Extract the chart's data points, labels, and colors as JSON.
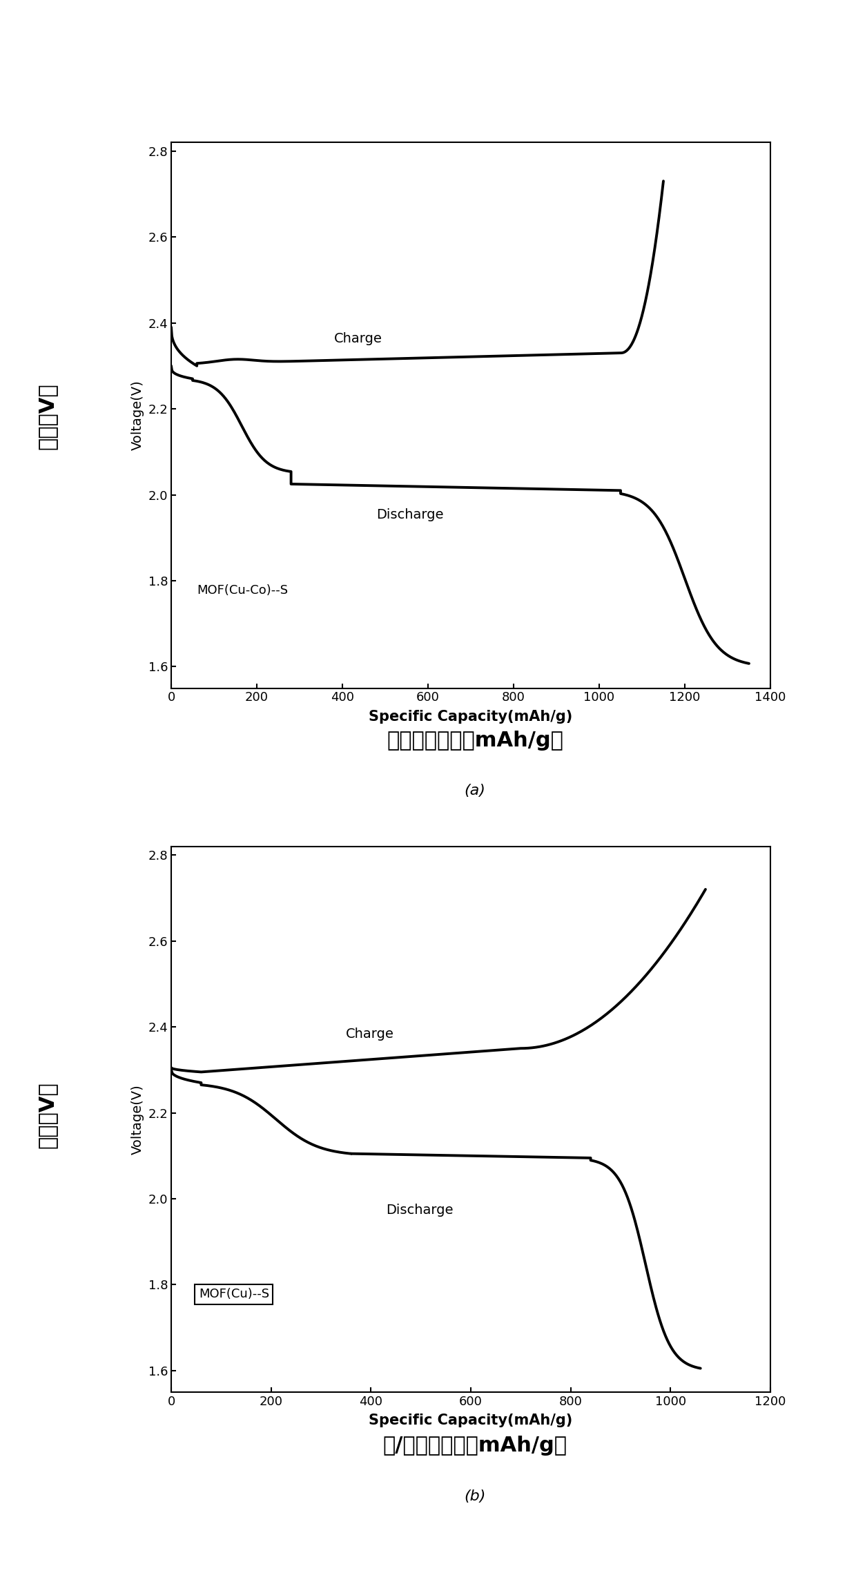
{
  "fig_width": 12.4,
  "fig_height": 22.91,
  "background_color": "#ffffff",
  "panel_a": {
    "xlabel_en": "Specific Capacity(mAh/g)",
    "xlabel_cn": "充放电比容量（mAh/g）",
    "ylabel_en": "Voltage(V)",
    "ylabel_cn": "电压（V）",
    "xlim": [
      0,
      1400
    ],
    "ylim": [
      1.55,
      2.82
    ],
    "xticks": [
      0,
      200,
      400,
      600,
      800,
      1000,
      1200,
      1400
    ],
    "yticks": [
      1.6,
      1.8,
      2.0,
      2.2,
      2.4,
      2.6,
      2.8
    ],
    "annotation": "MOF(Cu-Co)--S",
    "label_charge": "Charge",
    "label_discharge": "Discharge",
    "panel_label": "(a)"
  },
  "panel_b": {
    "xlabel_en": "Specific Capacity(mAh/g)",
    "xlabel_cn": "充/放电比容量（mAh/g）",
    "ylabel_en": "Voltage(V)",
    "ylabel_cn": "电压（V）",
    "xlim": [
      0,
      1200
    ],
    "ylim": [
      1.55,
      2.82
    ],
    "xticks": [
      0,
      200,
      400,
      600,
      800,
      1000,
      1200
    ],
    "yticks": [
      1.6,
      1.8,
      2.0,
      2.2,
      2.4,
      2.6,
      2.8
    ],
    "annotation": "MOF(Cu)--S",
    "label_charge": "Charge",
    "label_discharge": "Discharge",
    "panel_label": "(b)"
  },
  "line_color": "#000000",
  "line_width": 2.8
}
